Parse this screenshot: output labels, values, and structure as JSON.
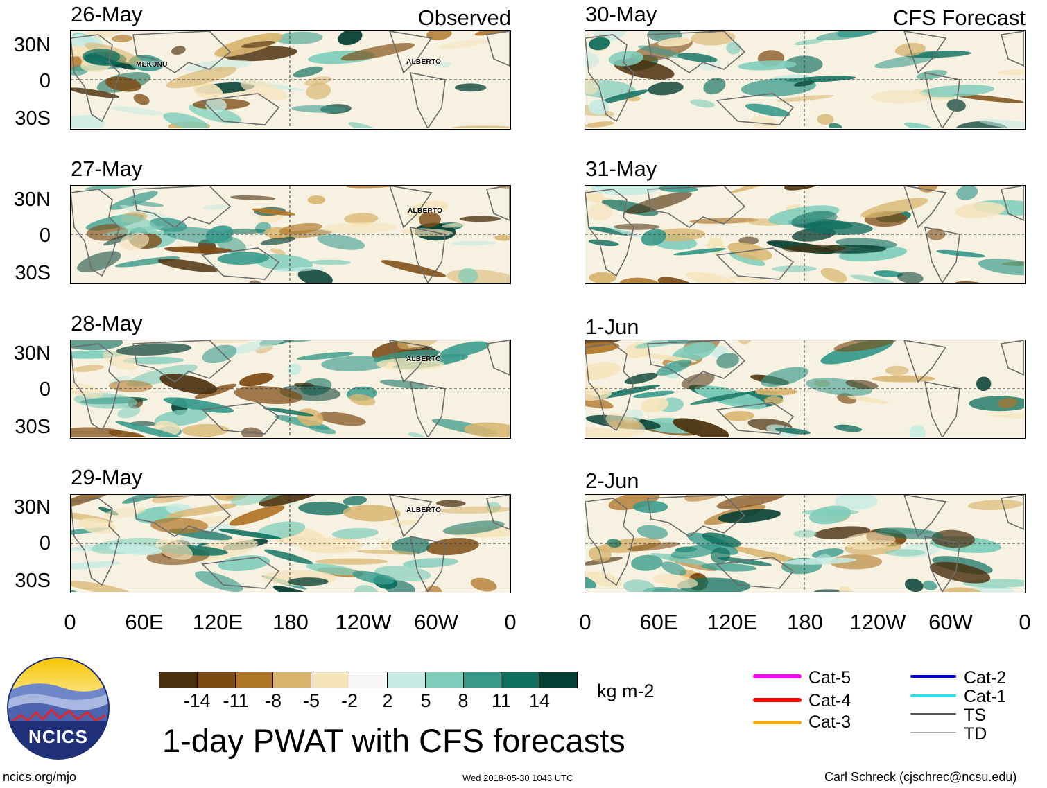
{
  "columns": {
    "left_tag": "Observed",
    "right_tag": "CFS Forecast"
  },
  "panels_left": [
    {
      "date": "26-May",
      "storms": [
        "MEKUNU",
        "ALBERTO"
      ]
    },
    {
      "date": "27-May",
      "storms": [
        "ALBERTO"
      ]
    },
    {
      "date": "28-May",
      "storms": [
        "ALBERTO"
      ]
    },
    {
      "date": "29-May",
      "storms": [
        "ALBERTO"
      ]
    }
  ],
  "panels_right": [
    {
      "date": "30-May"
    },
    {
      "date": "31-May"
    },
    {
      "date": "1-Jun"
    },
    {
      "date": "2-Jun"
    }
  ],
  "lat_labels": [
    "30N",
    "0",
    "30S"
  ],
  "lon_labels": [
    "0",
    "60E",
    "120E",
    "180",
    "120W",
    "60W",
    "0"
  ],
  "colorbar": {
    "colors": [
      "#4a2f0c",
      "#7d4b14",
      "#b07628",
      "#d8b56f",
      "#f5e4bb",
      "#f7f7f7",
      "#c6ebe3",
      "#7fcdbb",
      "#379a8b",
      "#0f6f5f",
      "#053f33"
    ],
    "ticks": [
      "-14",
      "-11",
      "-8",
      "-5",
      "-2",
      "2",
      "5",
      "8",
      "11",
      "14"
    ],
    "units": "kg m-2"
  },
  "storm_legend": [
    {
      "label": "Cat-5",
      "color": "#ff00ff"
    },
    {
      "label": "Cat-4",
      "color": "#ff0000"
    },
    {
      "label": "Cat-3",
      "color": "#f2a81d"
    },
    {
      "label": "Cat-2",
      "color": "#0000cc"
    },
    {
      "label": "Cat-1",
      "color": "#33ddee"
    },
    {
      "label": "TS",
      "color": "#555555"
    },
    {
      "label": "TD",
      "color": "#aaaaaa"
    }
  ],
  "logo": {
    "text": "NCICS"
  },
  "title": "1-day PWAT with CFS forecasts",
  "footer": {
    "left": "ncics.org/mjo",
    "center": "Wed 2018-05-30 1043 UTC",
    "right": "Carl Schreck (cjschrec@ncsu.edu)"
  }
}
